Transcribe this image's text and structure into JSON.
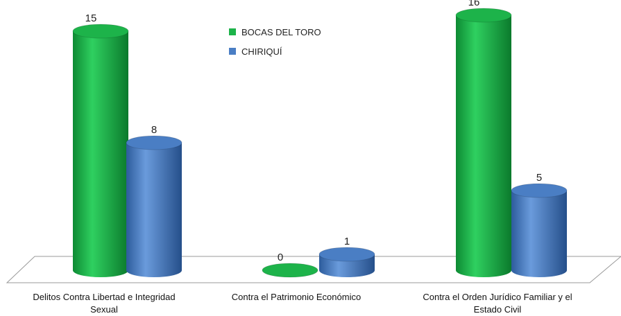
{
  "chart_data": {
    "type": "bar",
    "categories": [
      "Delitos  Contra Libertad e Integridad Sexual",
      "Contra el Patrimonio Económico",
      "Contra el Orden Jurídico Familiar y el Estado Civil"
    ],
    "series": [
      {
        "name": "BOCAS DEL TORO",
        "color": "#1db34a",
        "values": [
          15,
          0,
          16
        ]
      },
      {
        "name": "CHIRIQUÍ",
        "color": "#4a7ec4",
        "values": [
          8,
          1,
          5
        ]
      }
    ]
  }
}
